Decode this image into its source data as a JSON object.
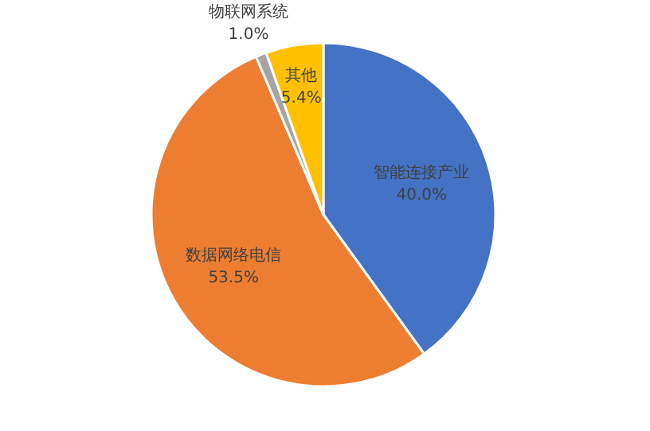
{
  "chart_data": {
    "type": "pie",
    "categories": [
      "智能连接产业",
      "数据网络电信",
      "物联网系统",
      "其他"
    ],
    "values": [
      40.0,
      53.5,
      1.0,
      5.4
    ],
    "value_labels": [
      "40.0%",
      "53.5%",
      "1.0%",
      "5.4%"
    ],
    "colors": [
      "#4472c4",
      "#ed7d31",
      "#a5a5a5",
      "#ffc000"
    ],
    "legend": false
  }
}
